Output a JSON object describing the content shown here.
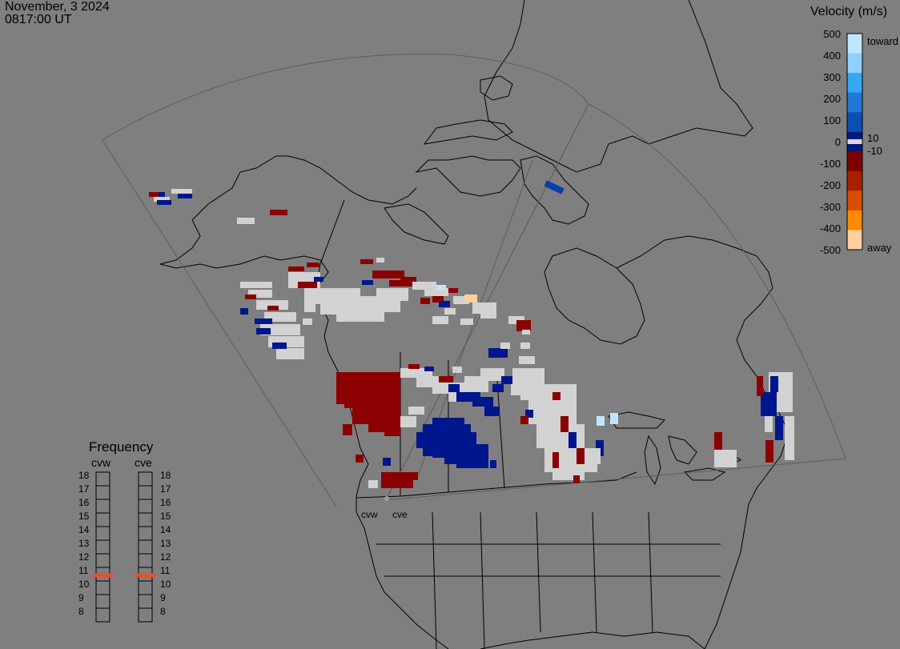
{
  "header": {
    "date": "November, 3 2024",
    "time": "0817:00 UT"
  },
  "colorbar": {
    "title": "Velocity (m/s)",
    "ticks": [
      "500",
      "400",
      "300",
      "200",
      "100",
      "0",
      "-100",
      "-200",
      "-300",
      "-400",
      "-500"
    ],
    "toward_label": "toward",
    "away_label": "away",
    "band_plus_label": "10",
    "band_minus_label": "-10",
    "colors": [
      "#bfe6ff",
      "#8fd0ff",
      "#34a8f2",
      "#1f78d6",
      "#0b4fb5",
      "#00197a",
      "#7b0000",
      "#a81f00",
      "#d94d00",
      "#ff8a00",
      "#ffcf9e"
    ]
  },
  "frequency": {
    "title": "Frequency",
    "radars": [
      "cvw",
      "cve"
    ],
    "ticks": [
      "18",
      "17",
      "16",
      "15",
      "14",
      "13",
      "12",
      "11",
      "10",
      "9",
      "8"
    ],
    "operating": {
      "cvw": 10.95,
      "cve": 10.95
    }
  },
  "sites": [
    "cvw",
    "cve"
  ]
}
